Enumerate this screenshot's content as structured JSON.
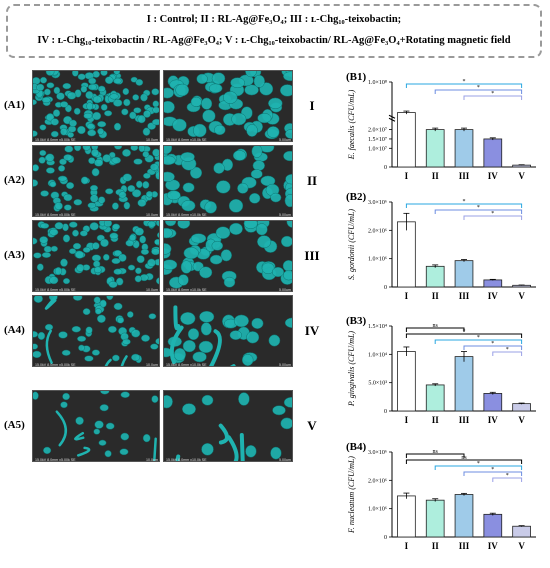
{
  "legend": {
    "line1": "I : Control;     II : RL-Ag@Fe₃O₄;     III : ʟ-Chg₁₀-teixobactin;",
    "line2": "IV : ʟ-Chg₁₀-teixobactin / RL-Ag@Fe₃O₄;   V : ʟ-Chg₁₀-teixobactin/ RL-Ag@Fe₃O₄+Rotating magnetic field"
  },
  "sem": {
    "rows": [
      {
        "label": "(A1)",
        "group": "I",
        "density": 0.95
      },
      {
        "label": "(A2)",
        "group": "II",
        "density": 0.7
      },
      {
        "label": "(A3)",
        "group": "III",
        "density": 0.8
      },
      {
        "label": "(A4)",
        "group": "IV",
        "density": 0.35
      },
      {
        "label": "(A5)",
        "group": "V",
        "density": 0.12
      }
    ],
    "left_caption": "15.0kV 8.0mm x5.00k SE",
    "left_scale": "10.0um",
    "right_caption": "15.0kV 8.0mm x10.0k SE",
    "right_scale": "5.00um",
    "colors": {
      "cell": "#1fb3b0",
      "background": "#2a2a2a"
    }
  },
  "chart_data": [
    {
      "type": "bar",
      "panel": "(B1)",
      "ylabel": "E. faecalis (CFU/mL)",
      "categories": [
        "I",
        "II",
        "III",
        "IV",
        "V"
      ],
      "values": [
        40000000,
        20000000,
        20000000,
        15000000,
        1000000
      ],
      "errors": [
        3000000,
        800000,
        800000,
        600000,
        200000
      ],
      "broken_axis": true,
      "ytick_labels": [
        "0",
        "1.0×10⁷",
        "1.5×10⁷",
        "2.0×10⁷",
        "1.0×10⁸"
      ],
      "colors": [
        "#ffffff",
        "#aeeedd",
        "#9fcbe9",
        "#8a8fe0",
        "#c9cbe8"
      ],
      "sig": [
        "*",
        "*",
        "*"
      ],
      "ylim": [
        0,
        100000000
      ]
    },
    {
      "type": "bar",
      "panel": "(B2)",
      "ylabel": "S. gordonii (CFU/mL)",
      "categories": [
        "I",
        "II",
        "III",
        "IV",
        "V"
      ],
      "values": [
        2300000,
        730000,
        930000,
        250000,
        60000
      ],
      "errors": [
        300000,
        50000,
        40000,
        20000,
        10000
      ],
      "ytick_labels": [
        "0",
        "1.0×10⁶",
        "2.0×10⁶",
        "3.0×10⁶"
      ],
      "colors": [
        "#ffffff",
        "#aeeedd",
        "#9fcbe9",
        "#8a8fe0",
        "#c9cbe8"
      ],
      "sig": [
        "*",
        "*",
        "*"
      ],
      "ylim": [
        0,
        3000000
      ]
    },
    {
      "type": "bar",
      "panel": "(B3)",
      "ylabel": "P. gingivalis (CFU/mL)",
      "categories": [
        "I",
        "II",
        "III",
        "IV",
        "V"
      ],
      "values": [
        10500,
        4600,
        9600,
        3100,
        1300
      ],
      "errors": [
        800,
        200,
        900,
        200,
        100
      ],
      "ytick_labels": [
        "0",
        "5.0×10³",
        "1.0×10⁴",
        "1.5×10⁴"
      ],
      "colors": [
        "#ffffff",
        "#aeeedd",
        "#9fcbe9",
        "#8a8fe0",
        "#c9cbe8"
      ],
      "sig": [
        "ns",
        "*",
        "*",
        "*",
        "*"
      ],
      "ylim": [
        0,
        15000
      ]
    },
    {
      "type": "bar",
      "panel": "(B4)",
      "ylabel": "F. nucleatum (CFU/mL)",
      "categories": [
        "I",
        "II",
        "III",
        "IV",
        "V"
      ],
      "values": [
        1450000,
        1300000,
        1500000,
        800000,
        380000
      ],
      "errors": [
        100000,
        50000,
        40000,
        40000,
        20000
      ],
      "ytick_labels": [
        "0",
        "1.0×10⁶",
        "2.0×10⁶",
        "3.0×10⁶"
      ],
      "colors": [
        "#ffffff",
        "#aeeedd",
        "#9fcbe9",
        "#8a8fe0",
        "#c9cbe8"
      ],
      "sig": [
        "ns",
        "ns",
        "*",
        "*",
        "*"
      ],
      "ylim": [
        0,
        3000000
      ]
    }
  ]
}
